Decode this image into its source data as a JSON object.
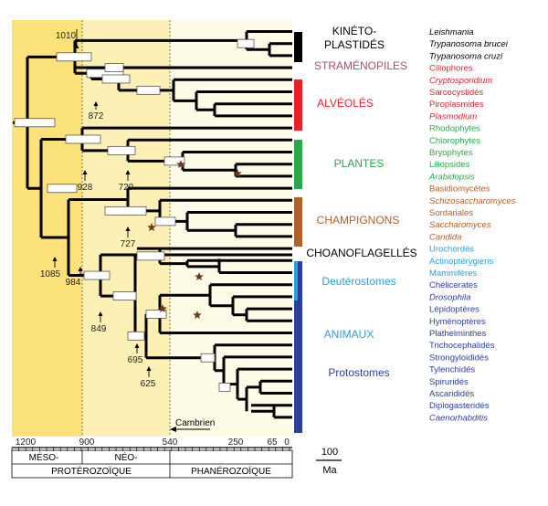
{
  "colors": {
    "bg_proterozoic": "#fbe27a",
    "bg_neo": "#fdf0b5",
    "bg_phanerozoic": "#fefbe6",
    "kinetoplastids": "#000000",
    "stramenopiles": "#b34a6a",
    "alveolates": "#e8202c",
    "plants": "#2aa84a",
    "fungi": "#b0602a",
    "choanoflagellates": "#000000",
    "deuterostomes": "#2a9fd8",
    "animals": "#2a3f9e",
    "star": "#6e3a1a"
  },
  "groups": [
    {
      "key": "kinetoplastids",
      "line1": "KINÉTO-",
      "line2": "PLASTIDÉS",
      "color": "#000000"
    },
    {
      "key": "stramenopiles",
      "line1": "STRAMÉNOPILES",
      "color": "#b34a6a"
    },
    {
      "key": "alveolates",
      "line1": "ALVÉOLÉS",
      "color": "#e8202c"
    },
    {
      "key": "plants",
      "line1": "PLANTES",
      "color": "#2aa84a"
    },
    {
      "key": "fungi",
      "line1": "CHAMPIGNONS",
      "color": "#b0602a"
    },
    {
      "key": "choanoflagellates",
      "line1": "CHOANOFLAGELLÉS",
      "color": "#000000"
    },
    {
      "key": "deuterostomes",
      "line1": "Deutérostomes",
      "color": "#2a9fd8"
    },
    {
      "key": "animals",
      "line1": "ANIMAUX",
      "color": "#2a9fd8"
    },
    {
      "key": "protostomes",
      "line1": "Protostomes",
      "color": "#2a3f9e"
    }
  ],
  "taxa": [
    {
      "name": "Leishmania",
      "italic": true,
      "color": "#000000"
    },
    {
      "name": "Trypanosoma brucei",
      "italic": true,
      "color": "#000000"
    },
    {
      "name": "Trypanosoma cruzi",
      "italic": true,
      "color": "#000000"
    },
    {
      "name": "Ciliophores",
      "italic": false,
      "color": "#e8202c"
    },
    {
      "name": "Cryptosporidium",
      "italic": true,
      "color": "#e8202c"
    },
    {
      "name": "Sarcocystidés",
      "italic": false,
      "color": "#e8202c"
    },
    {
      "name": "Piroplasmides",
      "italic": false,
      "color": "#e8202c"
    },
    {
      "name": "Plasmodium",
      "italic": true,
      "color": "#e8202c"
    },
    {
      "name": "Rhodophytes",
      "italic": false,
      "color": "#2aa84a"
    },
    {
      "name": "Chlorophytes",
      "italic": false,
      "color": "#2aa84a"
    },
    {
      "name": "Bryophytes",
      "italic": false,
      "color": "#2aa84a"
    },
    {
      "name": "Liliopsides",
      "italic": false,
      "color": "#2aa84a"
    },
    {
      "name": "Arabidopsis",
      "italic": true,
      "color": "#2aa84a"
    },
    {
      "name": "Basidiomycètes",
      "italic": false,
      "color": "#b0602a"
    },
    {
      "name": "Schizosaccharomyces",
      "italic": true,
      "color": "#b0602a"
    },
    {
      "name": "Sordariales",
      "italic": false,
      "color": "#b0602a"
    },
    {
      "name": "Saccharomyces",
      "italic": true,
      "color": "#b0602a"
    },
    {
      "name": "Candida",
      "italic": true,
      "color": "#b0602a"
    },
    {
      "name": "Urochordés",
      "italic": false,
      "color": "#2a9fd8"
    },
    {
      "name": "Actinoptérygiens",
      "italic": false,
      "color": "#2a9fd8"
    },
    {
      "name": "Mammifères",
      "italic": false,
      "color": "#2a9fd8"
    },
    {
      "name": "Chélicerates",
      "italic": false,
      "color": "#2a3f9e"
    },
    {
      "name": "Drosophila",
      "italic": true,
      "color": "#2a3f9e"
    },
    {
      "name": "Lépidoptères",
      "italic": false,
      "color": "#2a3f9e"
    },
    {
      "name": "Hyménoptères",
      "italic": false,
      "color": "#2a3f9e"
    },
    {
      "name": "Plathelminthes",
      "italic": false,
      "color": "#2a3f9e"
    },
    {
      "name": "Trichocephalidés",
      "italic": false,
      "color": "#2a3f9e"
    },
    {
      "name": "Strongyloididés",
      "italic": false,
      "color": "#2a3f9e"
    },
    {
      "name": "Tylenchidés",
      "italic": false,
      "color": "#2a3f9e"
    },
    {
      "name": "Spiruridés",
      "italic": false,
      "color": "#2a3f9e"
    },
    {
      "name": "Ascarididés",
      "italic": false,
      "color": "#2a3f9e"
    },
    {
      "name": "Diplogasteridés",
      "italic": false,
      "color": "#2a3f9e"
    },
    {
      "name": "Caenorhabditis",
      "italic": true,
      "color": "#2a3f9e"
    }
  ],
  "node_ages": [
    "1010",
    "872",
    "928",
    "729",
    "727",
    "1085",
    "984",
    "849",
    "695",
    "625"
  ],
  "axis": {
    "ticks": [
      "1200",
      "900",
      "540",
      "250",
      "65",
      "0"
    ],
    "cambrian_label": "Cambrien",
    "eras": [
      "MÉSO-",
      "NÉO-"
    ],
    "eons": [
      "PROTÉROZOÏQUE",
      "PHANÉROZOÏQUE"
    ],
    "scale_value": "100",
    "scale_unit": "Ma"
  }
}
